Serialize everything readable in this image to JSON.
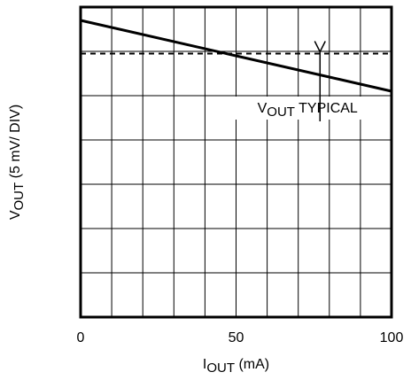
{
  "chart_data": {
    "type": "line",
    "xlabel": {
      "main": "I",
      "sub": "OUT",
      "unit": " (mA)"
    },
    "ylabel": {
      "main": "V",
      "sub": "OUT",
      "unit": " (5 mV/ DIV)"
    },
    "x_ticks": [
      "0",
      "50",
      "100"
    ],
    "xlim": [
      0,
      100
    ],
    "ylim": [
      0,
      7
    ],
    "grid": true,
    "x_divisions": 10,
    "y_divisions": 7,
    "series": [
      {
        "style": "solid",
        "x": [
          0,
          100
        ],
        "y": [
          6.7,
          5.1
        ]
      },
      {
        "name": {
          "main": "V",
          "sub": "OUT",
          "rest": " TYPICAL"
        },
        "style": "dashed",
        "x": [
          0,
          100
        ],
        "y": [
          5.95,
          5.95
        ]
      }
    ],
    "annotation": {
      "text": {
        "main": "V",
        "sub": "OUT",
        "rest": " TYPICAL"
      },
      "arrow_to": [
        77,
        5.95
      ]
    }
  }
}
